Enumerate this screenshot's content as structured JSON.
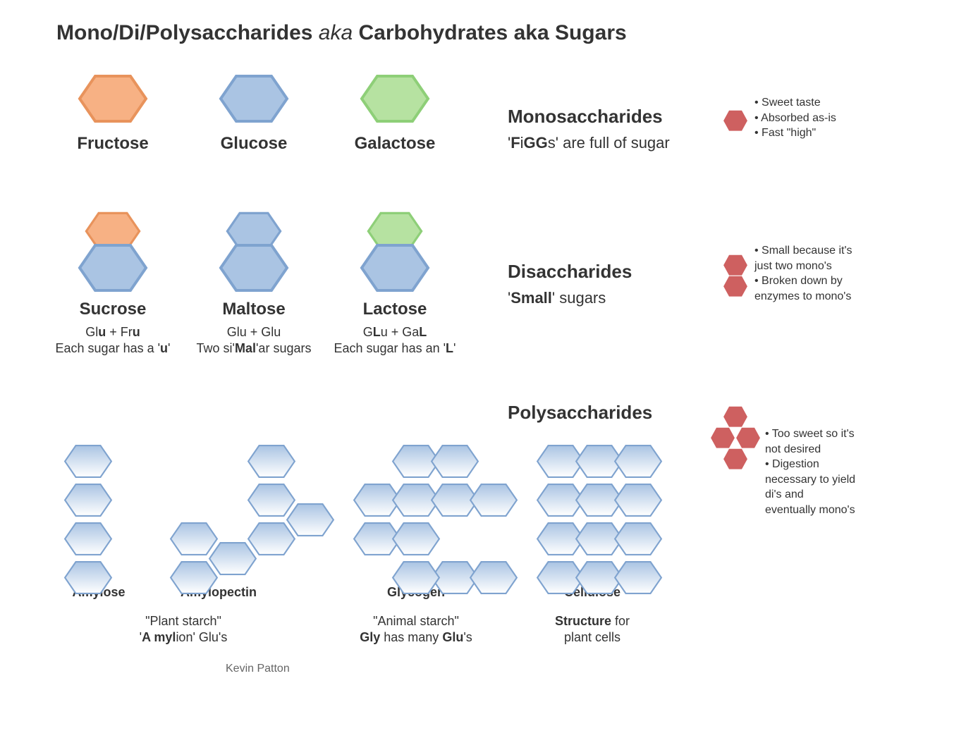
{
  "title": {
    "main": "Mono/Di/Polysaccharides",
    "aka": "aka",
    "sub": "Carbohydrates aka Sugars"
  },
  "colors": {
    "fructose_fill": "#f7b184",
    "fructose_stroke": "#e8935c",
    "glucose_fill": "#aac4e3",
    "glucose_stroke": "#7fa3cf",
    "galactose_fill": "#b6e2a1",
    "galactose_stroke": "#8ecf78",
    "red_hex_fill": "#c94f4f",
    "text": "#333333",
    "muted": "#666666"
  },
  "mono": {
    "fructose": "Fructose",
    "glucose": "Glucose",
    "galactose": "Galactose",
    "category": "Monosaccharides",
    "sub": "'FiGGs' are full of sugar",
    "notes": [
      "• Sweet taste",
      "• Absorbed as-is",
      "• Fast \"high\""
    ]
  },
  "di": {
    "sucrose": "Sucrose",
    "maltose": "Maltose",
    "lactose": "Lactose",
    "sucrose_comp": "Glu + Fru\nEach sugar has a 'u'",
    "maltose_comp": "Glu + Glu\nTwo si'Mal'ar sugars",
    "lactose_comp": "GLu + GaL\nEach sugar has an 'L'",
    "category": "Disaccharides",
    "sub": "'Small' sugars",
    "notes": [
      "• Small because it's",
      "  just two mono's",
      "• Broken down by",
      "  enzymes to mono's"
    ]
  },
  "poly": {
    "amylose": "Amylose",
    "amylopectin": "Amylopectin",
    "glycogen": "Glycogen",
    "cellulose": "Cellulose",
    "amyl_desc": "\"Plant starch\"\n'A mylion' Glu's",
    "glycogen_desc": "\"Animal starch\"\nGly has many Glu's",
    "cellulose_desc": "Structure for\nplant cells",
    "category": "Polysaccharides",
    "notes": [
      "• Too sweet so it's",
      "  not desired",
      "• Digestion",
      "  necessary to yield",
      "  di's and",
      "  eventually mono's"
    ]
  },
  "author": "Kevin Patton"
}
